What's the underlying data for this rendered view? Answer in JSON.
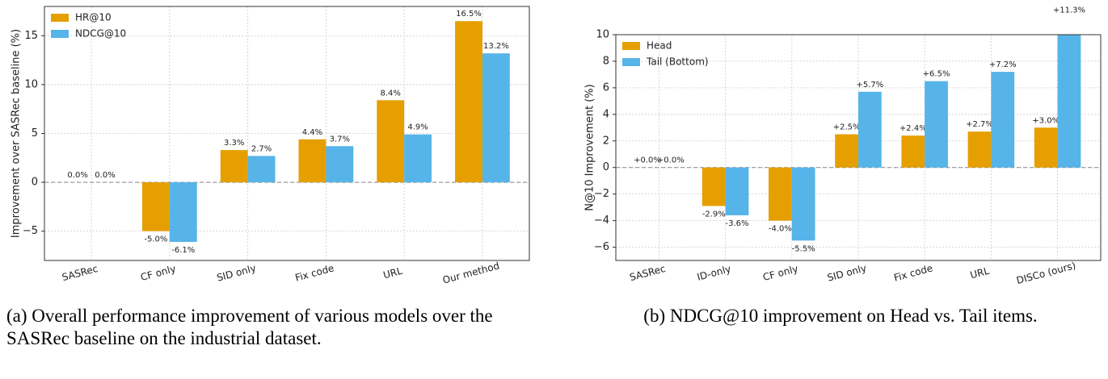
{
  "chart_data": [
    {
      "type": "bar",
      "ylabel": "Improvement over SASRec baseline (%)",
      "categories": [
        "SASRec",
        "CF only",
        "SID only",
        "Fix code",
        "URL",
        "Our method"
      ],
      "series": [
        {
          "name": "HR@10",
          "color": "#e69f00",
          "values": [
            0.0,
            -5.0,
            3.3,
            4.4,
            8.4,
            16.5
          ],
          "value_labels": [
            "0.0%",
            "-5.0%",
            "3.3%",
            "4.4%",
            "8.4%",
            "16.5%"
          ]
        },
        {
          "name": "NDCG@10",
          "color": "#56b4e9",
          "values": [
            0.0,
            -6.1,
            2.7,
            3.7,
            4.9,
            13.2
          ],
          "value_labels": [
            "0.0%",
            "-6.1%",
            "2.7%",
            "3.7%",
            "4.9%",
            "13.2%"
          ]
        }
      ],
      "ylim": [
        -8,
        18
      ],
      "yticks": [
        {
          "value": -5,
          "label": "−5"
        },
        0,
        5,
        10,
        15
      ],
      "grid": true,
      "legend": "upper left",
      "caption": "(a) Overall performance improvement of various models over the SASRec baseline on the industrial dataset."
    },
    {
      "type": "bar",
      "ylabel": "N@10 Improvement (%)",
      "categories": [
        "SASRec",
        "ID-only",
        "CF only",
        "SID only",
        "Fix code",
        "URL",
        "DISCo (ours)"
      ],
      "series": [
        {
          "name": "Head",
          "color": "#e69f00",
          "values": [
            0.0,
            -2.9,
            -4.0,
            2.5,
            2.4,
            2.7,
            3.0
          ],
          "value_labels": [
            "+0.0%",
            "-2.9%",
            "-4.0%",
            "+2.5%",
            "+2.4%",
            "+2.7%",
            "+3.0%"
          ]
        },
        {
          "name": "Tail (Bottom)",
          "color": "#56b4e9",
          "values": [
            0.0,
            -3.6,
            -5.5,
            5.7,
            6.5,
            7.2,
            11.3
          ],
          "value_labels": [
            "+0.0%",
            "-3.6%",
            "-5.5%",
            "+5.7%",
            "+6.5%",
            "+7.2%",
            "+11.3%"
          ]
        }
      ],
      "ylim": [
        -7,
        10
      ],
      "yticks": [
        {
          "value": -6,
          "label": "−6"
        },
        {
          "value": -4,
          "label": "−4"
        },
        {
          "value": -2,
          "label": "−2"
        },
        0,
        2,
        4,
        6,
        8,
        10
      ],
      "grid": true,
      "legend": "upper left",
      "caption": "(b) NDCG@10 improvement on Head vs. Tail items."
    }
  ]
}
